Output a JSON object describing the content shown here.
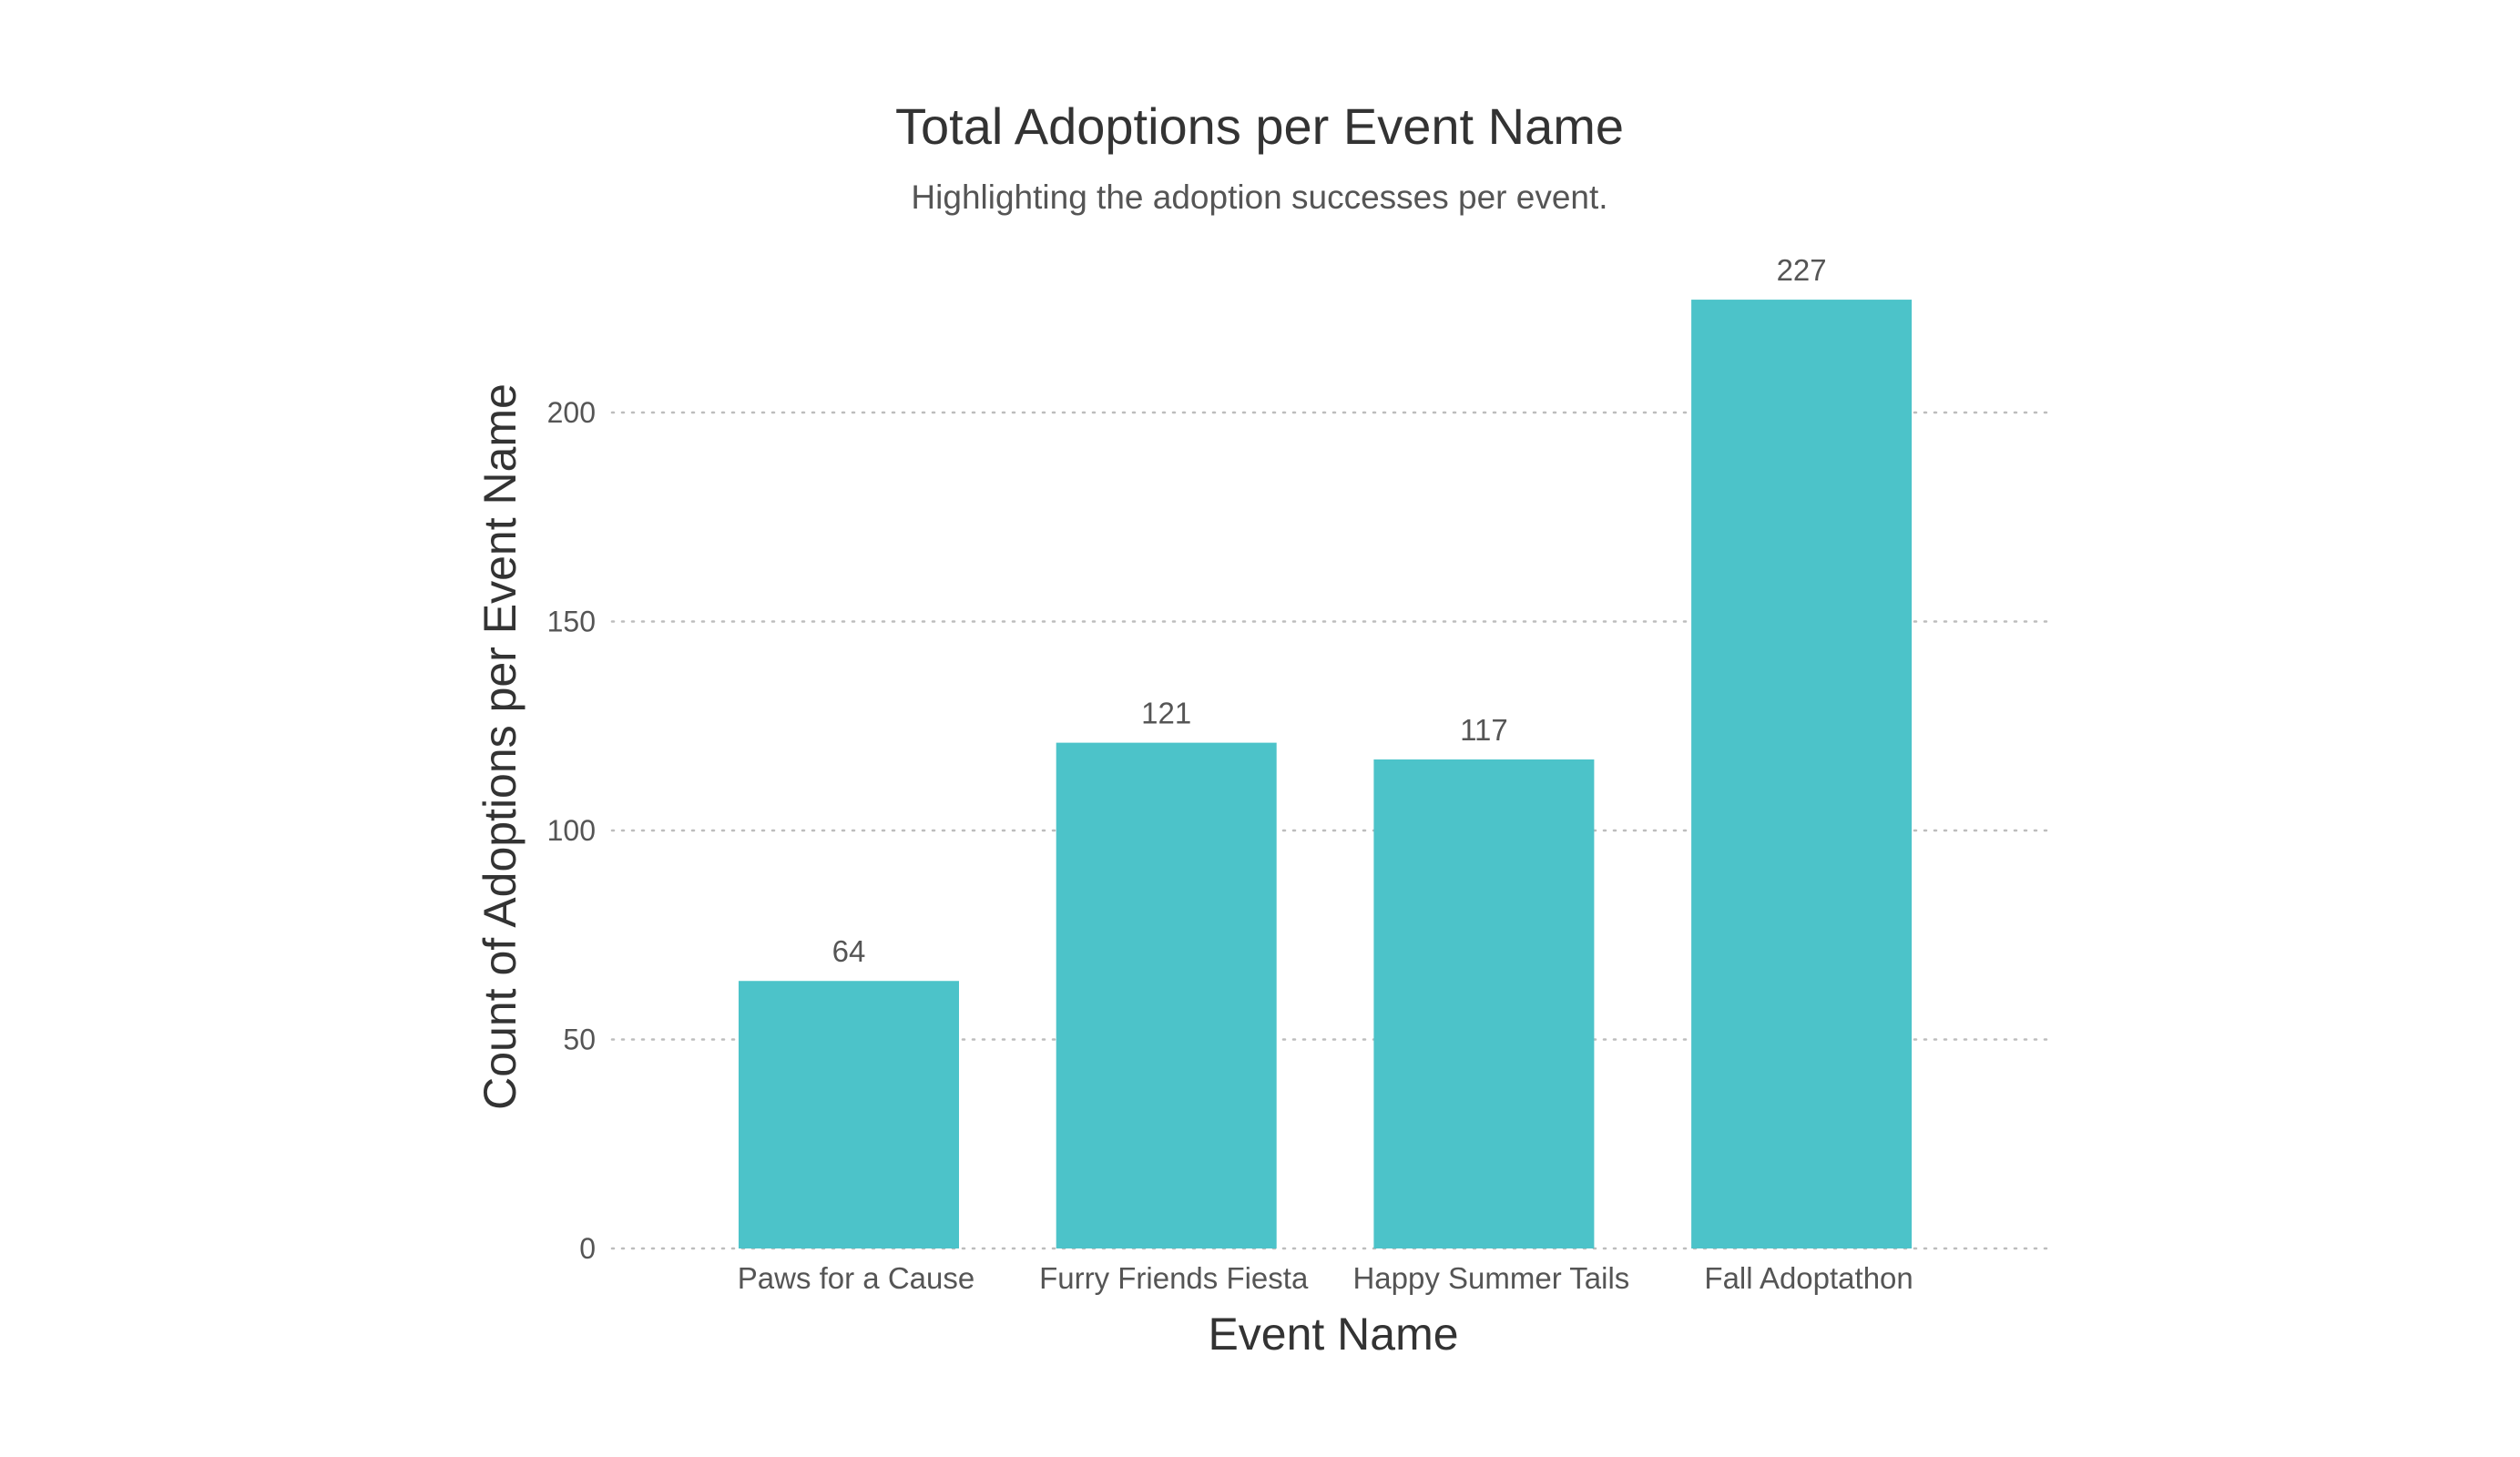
{
  "chart_data": {
    "type": "bar",
    "title": "Total Adoptions per Event Name",
    "subtitle": "Highlighting the adoption successes per event.",
    "xlabel": "Event Name",
    "ylabel": "Count of Adoptions per Event Name",
    "categories": [
      "Paws for a Cause",
      "Furry Friends Fiesta",
      "Happy Summer Tails",
      "Fall Adoptathon"
    ],
    "values": [
      64,
      121,
      117,
      227
    ],
    "ylim": [
      0,
      240
    ],
    "yticks": [
      0,
      50,
      100,
      150,
      200
    ],
    "ytick_labels": [
      "0",
      "50",
      "100",
      "150",
      "200"
    ],
    "data_labels": [
      "64",
      "121",
      "117",
      "227"
    ],
    "grid": true,
    "grid_style": "dotted",
    "legend": "none",
    "bar_color": "#4cc3c9"
  }
}
